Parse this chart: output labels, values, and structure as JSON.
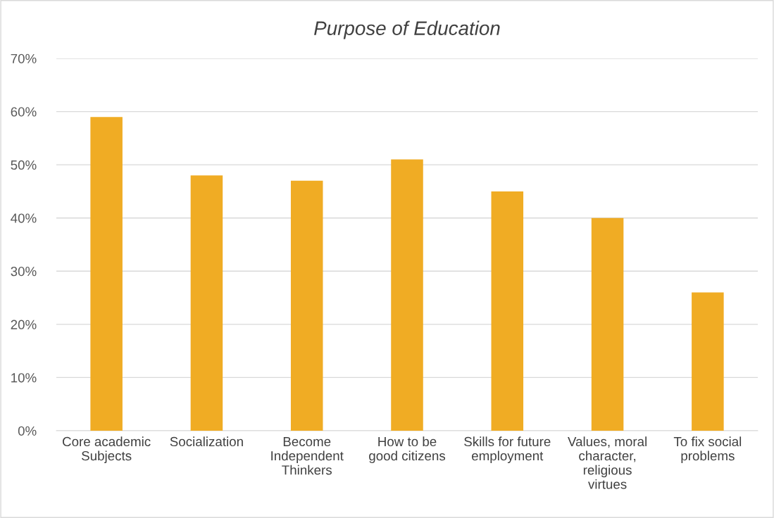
{
  "chart_data": {
    "type": "bar",
    "title": "Purpose of Education",
    "categories": [
      "Core academic\nSubjects",
      "Socialization",
      "Become\nIndependent\nThinkers",
      "How to be\ngood citizens",
      "Skills for future\nemployment",
      "Values, moral\ncharacter,\nreligious\nvirtues",
      "To fix social\nproblems"
    ],
    "values": [
      59,
      48,
      47,
      51,
      45,
      40,
      26
    ],
    "color": "#f0ac24",
    "ylim": [
      0,
      70
    ],
    "yticks": [
      {
        "value": 0,
        "label": "0%"
      },
      {
        "value": 10,
        "label": "10%"
      },
      {
        "value": 20,
        "label": "20%"
      },
      {
        "value": 30,
        "label": "30%"
      },
      {
        "value": 40,
        "label": "40%"
      },
      {
        "value": 50,
        "label": "50%"
      },
      {
        "value": 60,
        "label": "60%"
      },
      {
        "value": 70,
        "label": "70%"
      }
    ],
    "grid": "y"
  }
}
